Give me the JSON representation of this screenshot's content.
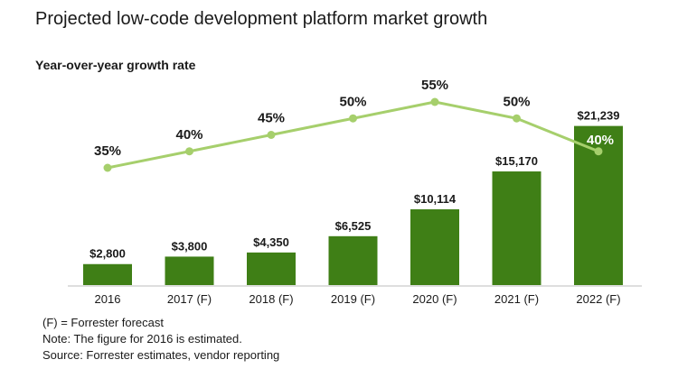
{
  "title": "Projected low-code development platform market growth",
  "subtitle": "Year-over-year growth rate",
  "colors": {
    "bar": "#3f7f16",
    "line": "#a6cf6c",
    "text": "#1a1a1a"
  },
  "chart_data": {
    "type": "bar",
    "categories": [
      "2016",
      "2017 (F)",
      "2018 (F)",
      "2019 (F)",
      "2020 (F)",
      "2021 (F)",
      "2022 (F)"
    ],
    "series": [
      {
        "type": "bar",
        "values": [
          2800,
          3800,
          4350,
          6525,
          10114,
          15170,
          21239
        ],
        "labels": [
          "$2,800",
          "$3,800",
          "$4,350",
          "$6,525",
          "$10,114",
          "$15,170",
          "$21,239"
        ]
      },
      {
        "type": "line",
        "values": [
          35,
          40,
          45,
          50,
          55,
          50,
          40
        ],
        "labels": [
          "35%",
          "40%",
          "45%",
          "50%",
          "55%",
          "50%",
          "40%"
        ]
      }
    ],
    "bar_ylim": [
      0,
      23000
    ],
    "line_ylim": [
      0,
      70
    ],
    "grid": false,
    "legend": "none"
  },
  "notes": [
    "(F) = Forrester forecast",
    "Note: The figure for 2016 is estimated.",
    "Source: Forrester estimates, vendor reporting"
  ]
}
